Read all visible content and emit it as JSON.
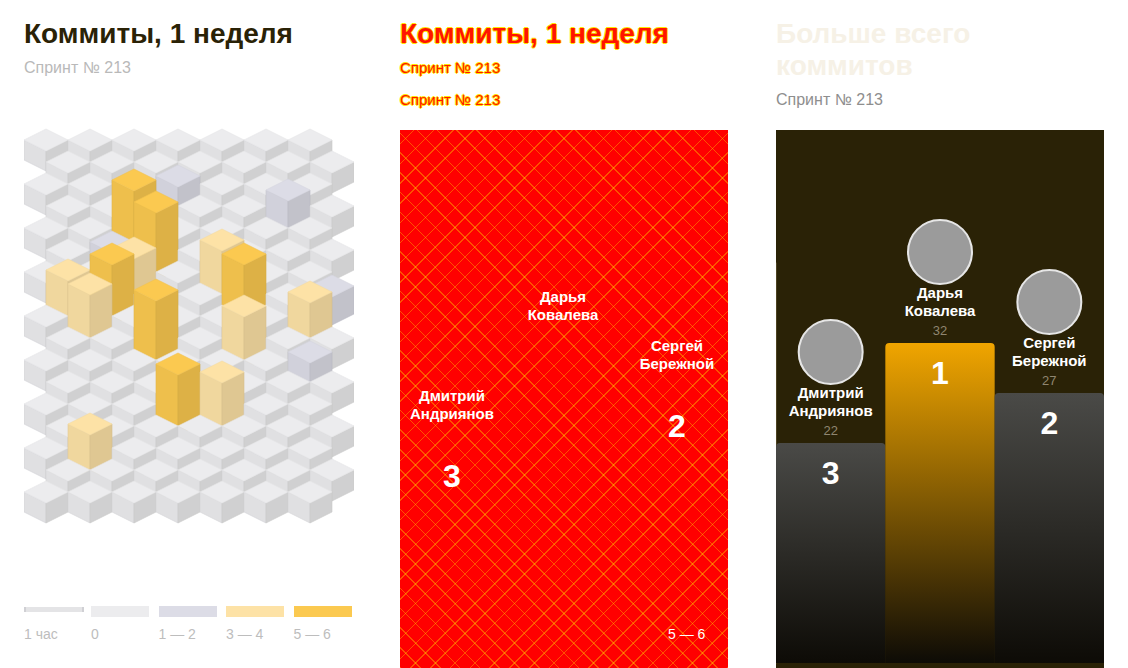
{
  "chart_data": [
    {
      "type": "heatmap",
      "title": "Коммиты, 1 неделя",
      "subtitle": "Спринт № 213",
      "unit_label": "1 час",
      "cells": [
        [
          0,
          0,
          0,
          0,
          0,
          0,
          0
        ],
        [
          0,
          0,
          0,
          0,
          0,
          0,
          0
        ],
        [
          0,
          0,
          0,
          1,
          0,
          0,
          0
        ],
        [
          0,
          0,
          0,
          0,
          0,
          2,
          0
        ],
        [
          0,
          0,
          6,
          0,
          0,
          0,
          0
        ],
        [
          0,
          1,
          6,
          0,
          0,
          0,
          0
        ],
        [
          0,
          0,
          3,
          0,
          4,
          0,
          0
        ],
        [
          3,
          5,
          0,
          0,
          5,
          0,
          1
        ],
        [
          0,
          4,
          0,
          0,
          0,
          0,
          3
        ],
        [
          0,
          0,
          6,
          0,
          4,
          0,
          0
        ],
        [
          0,
          0,
          0,
          0,
          0,
          0,
          1
        ],
        [
          0,
          0,
          0,
          0,
          0,
          0,
          0
        ],
        [
          0,
          0,
          0,
          5,
          4,
          0,
          0
        ],
        [
          0,
          0,
          0,
          0,
          0,
          0,
          0
        ],
        [
          0,
          3,
          0,
          0,
          0,
          0,
          0
        ],
        [
          0,
          0,
          0,
          0,
          0,
          0,
          0
        ],
        [
          0,
          0,
          0,
          0,
          0,
          0,
          0
        ]
      ],
      "color_scale": [
        {
          "label": "0",
          "min": 0,
          "max": 0,
          "color": "#ececee"
        },
        {
          "label": "1 — 2",
          "min": 1,
          "max": 2,
          "color": "#dcdce6"
        },
        {
          "label": "3 — 4",
          "min": 3,
          "max": 4,
          "color": "#fde2a6"
        },
        {
          "label": "5 — 6",
          "min": 5,
          "max": 6,
          "color": "#fbc950"
        }
      ]
    },
    {
      "type": "bar",
      "title": "Больше всего коммитов",
      "subtitle": "Спринт № 213",
      "categories": [
        "Дмитрий Андриянов",
        "Дарья Ковалева",
        "Сергей Бережной"
      ],
      "values": [
        22,
        32,
        27
      ],
      "ranks": [
        3,
        1,
        2
      ],
      "colors": [
        "#4a4a47",
        "#f0a500",
        "#4a4a47"
      ],
      "ylim": [
        0,
        40
      ],
      "tick_labels": false,
      "grid": false,
      "data_labels": true
    }
  ],
  "overlay": {
    "title": "Коммиты, 1 неделя",
    "subtitles": [
      "Спринт № 213",
      "Спринт № 213"
    ],
    "names": [
      "Дарья Ковалева",
      "Сергей Бережной",
      "Дмитрий Андриянов"
    ],
    "ranks": [
      "3",
      "2"
    ],
    "legend_label": "5 — 6"
  }
}
